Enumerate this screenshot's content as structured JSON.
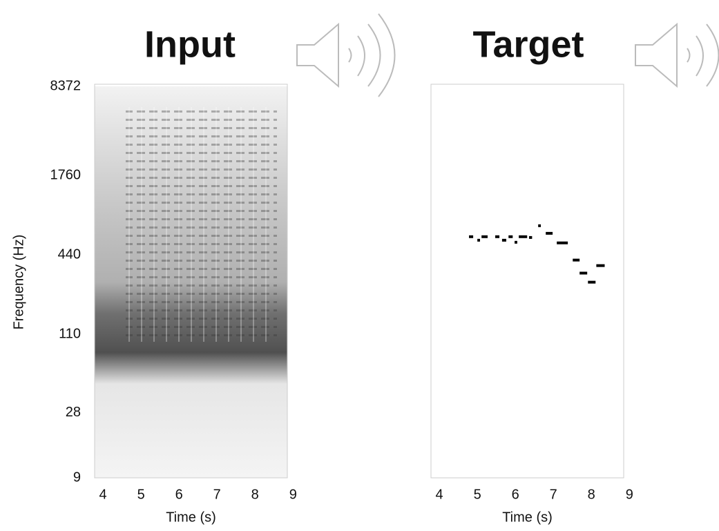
{
  "chart_data": [
    {
      "type": "spectrogram",
      "title": "Input",
      "x_label": "Time (s)",
      "y_label": "Frequency (Hz)",
      "xlim": [
        3.78,
        8.85
      ],
      "xticks": [
        4,
        5,
        6,
        7,
        8,
        9
      ],
      "ylim": [
        9,
        8372
      ],
      "yticks": [
        9,
        28,
        110,
        440,
        1760,
        8372
      ],
      "log_y": true
    },
    {
      "type": "piano-roll",
      "title": "Target",
      "x_label": "Time (s)",
      "xlim": [
        3.78,
        8.85
      ],
      "xticks": [
        4,
        5,
        6,
        7,
        8,
        9
      ],
      "ylim": [
        9,
        8372
      ],
      "log_y": true,
      "color": "#000000",
      "onsets": [
        4.78,
        5.0,
        5.11,
        5.47,
        5.65,
        5.82,
        5.98,
        6.09,
        6.36,
        6.6,
        6.8,
        7.09,
        7.51,
        7.69,
        7.91,
        8.13
      ],
      "offsets": [
        4.89,
        5.07,
        5.27,
        5.58,
        5.76,
        5.93,
        6.05,
        6.31,
        6.44,
        6.67,
        6.98,
        7.38,
        7.69,
        7.89,
        8.11,
        8.35
      ],
      "values": [
        606,
        570,
        606,
        606,
        570,
        606,
        550,
        606,
        598,
        734,
        643,
        544,
        403,
        321,
        274,
        366
      ]
    }
  ]
}
